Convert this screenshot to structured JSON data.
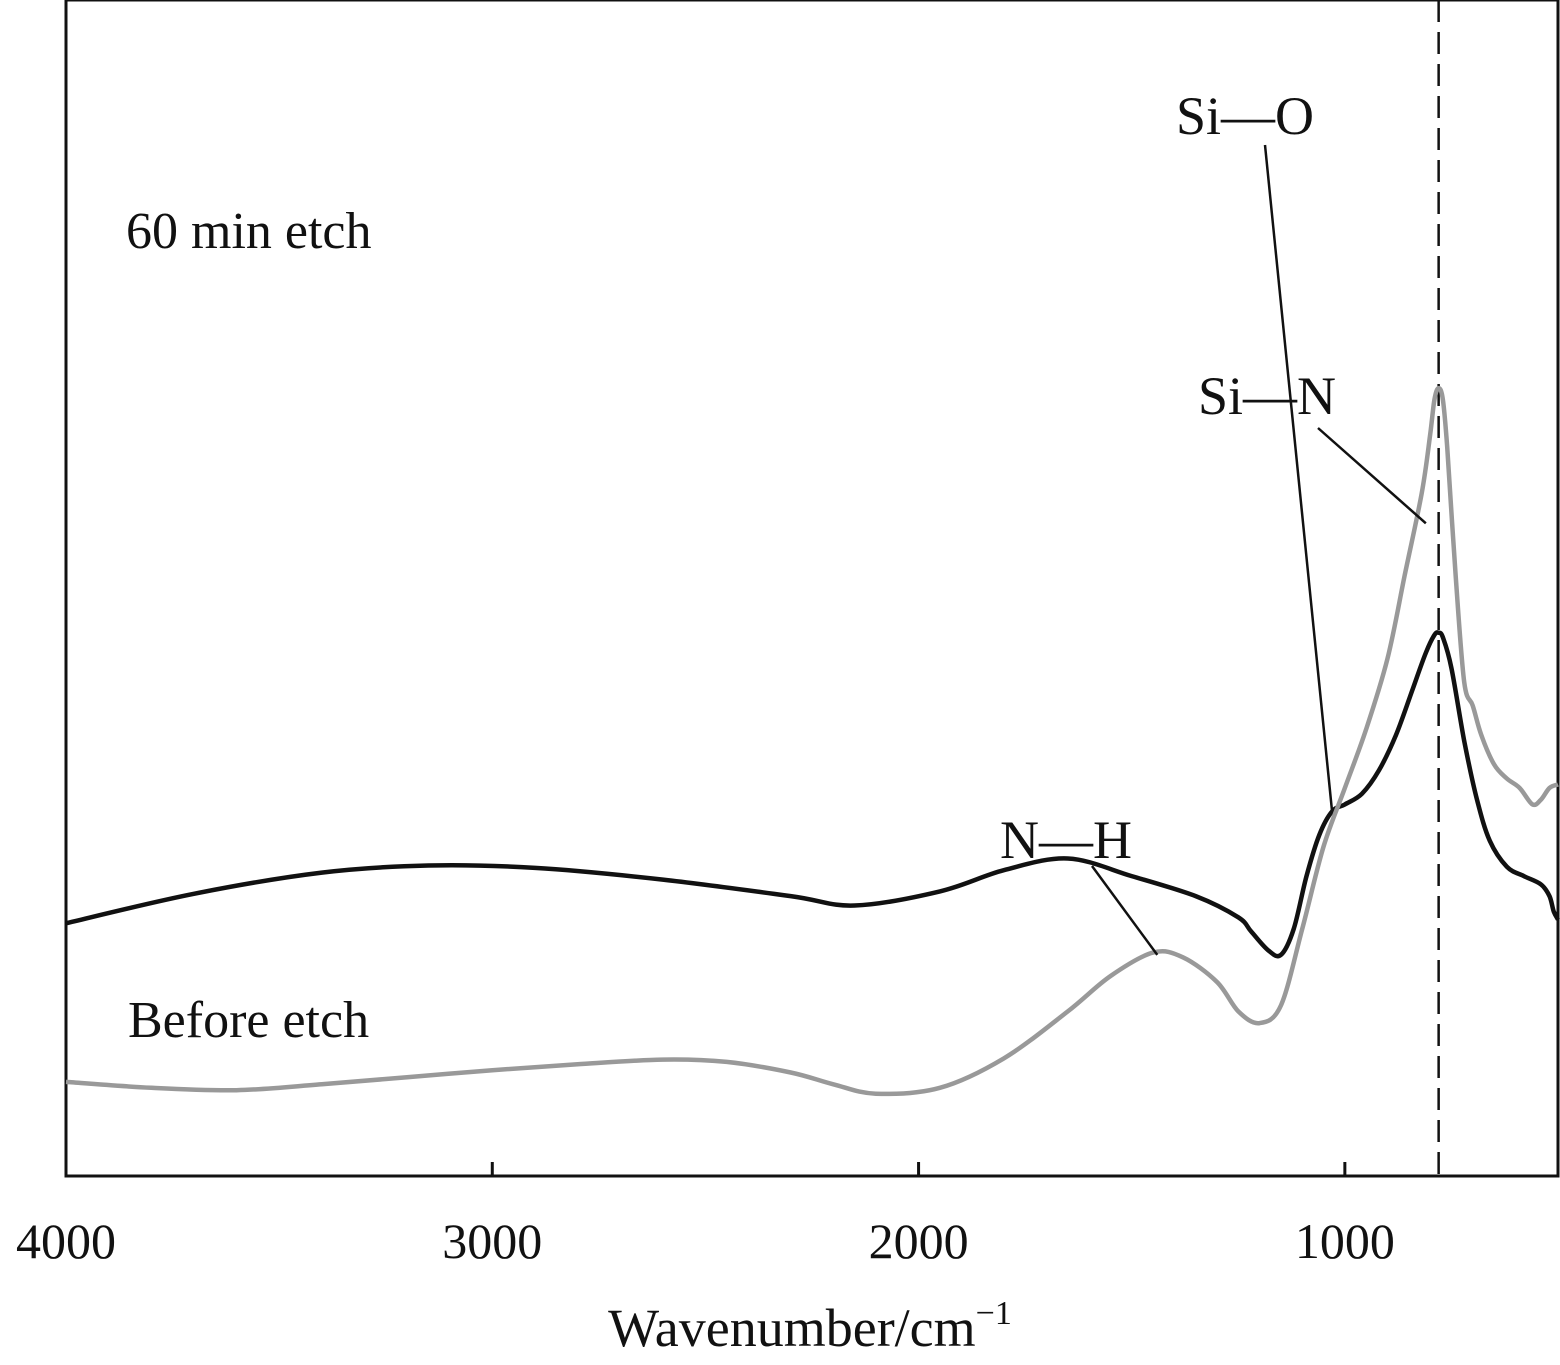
{
  "chart_data": {
    "type": "line",
    "xlabel": "Wavenumber/cm",
    "xlabel_sup": "−1",
    "xlim": [
      4000,
      500
    ],
    "x_reversed": true,
    "xticks": [
      4000,
      3000,
      2000,
      1000
    ],
    "y_axis_visible": false,
    "grid": false,
    "legend": "none",
    "reference_line": {
      "x": 780,
      "style": "dashed",
      "color": "#111111"
    },
    "series": [
      {
        "name": "60 min etch",
        "color": "#111111",
        "x": [
          4000,
          3700,
          3400,
          3150,
          2900,
          2600,
          2300,
          2150,
          1950,
          1800,
          1650,
          1500,
          1350,
          1250,
          1220,
          1180,
          1150,
          1120,
          1090,
          1060,
          1030,
          1000,
          960,
          920,
          880,
          840,
          810,
          790,
          780,
          770,
          750,
          720,
          690,
          660,
          620,
          580,
          540,
          520,
          510,
          500
        ],
        "values": [
          0.215,
          0.24,
          0.258,
          0.264,
          0.262,
          0.252,
          0.238,
          0.23,
          0.242,
          0.26,
          0.27,
          0.255,
          0.238,
          0.22,
          0.208,
          0.192,
          0.188,
          0.21,
          0.255,
          0.29,
          0.31,
          0.316,
          0.325,
          0.345,
          0.375,
          0.415,
          0.445,
          0.46,
          0.462,
          0.458,
          0.432,
          0.37,
          0.32,
          0.285,
          0.263,
          0.255,
          0.248,
          0.238,
          0.225,
          0.218
        ]
      },
      {
        "name": "Before etch",
        "color": "#999999",
        "x": [
          4000,
          3800,
          3600,
          3400,
          3200,
          3000,
          2800,
          2600,
          2450,
          2300,
          2200,
          2100,
          1950,
          1800,
          1650,
          1550,
          1450,
          1380,
          1300,
          1250,
          1200,
          1150,
          1100,
          1050,
          1000,
          950,
          900,
          860,
          820,
          800,
          790,
          780,
          770,
          760,
          740,
          720,
          700,
          680,
          650,
          620,
          590,
          560,
          540,
          520,
          500
        ],
        "values": [
          0.08,
          0.075,
          0.073,
          0.078,
          0.084,
          0.09,
          0.095,
          0.099,
          0.097,
          0.088,
          0.078,
          0.07,
          0.075,
          0.1,
          0.14,
          0.17,
          0.19,
          0.186,
          0.165,
          0.14,
          0.13,
          0.145,
          0.21,
          0.28,
          0.33,
          0.38,
          0.44,
          0.51,
          0.58,
          0.63,
          0.66,
          0.67,
          0.66,
          0.62,
          0.51,
          0.42,
          0.4,
          0.375,
          0.35,
          0.338,
          0.33,
          0.316,
          0.32,
          0.33,
          0.333
        ]
      }
    ],
    "annotations": [
      {
        "text": "Si—O",
        "x": 1030,
        "y": 0.31
      },
      {
        "text": "Si—N",
        "x": 810,
        "y": 0.555
      },
      {
        "text": "N—H",
        "x": 1440,
        "y": 0.188
      }
    ]
  }
}
